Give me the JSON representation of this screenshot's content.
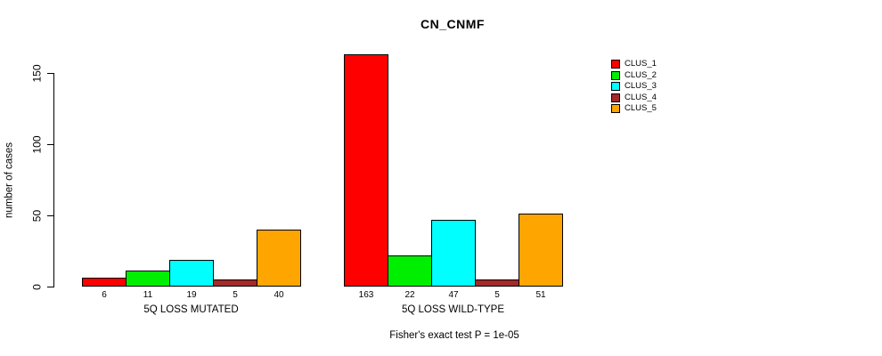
{
  "chart_data": {
    "type": "bar",
    "title": "CN_CNMF",
    "ylabel": "number of cases",
    "subtitle": "Fisher's exact test P = 1e-05",
    "yticks": [
      0,
      50,
      100,
      150
    ],
    "ylim": [
      0,
      163
    ],
    "grid": false,
    "legend_position": "right",
    "categories": [
      "5Q LOSS MUTATED",
      "5Q LOSS WILD-TYPE"
    ],
    "groups": [
      {
        "label": "5Q LOSS MUTATED",
        "values": [
          6,
          11,
          19,
          5,
          40
        ]
      },
      {
        "label": "5Q LOSS WILD-TYPE",
        "values": [
          163,
          22,
          47,
          5,
          51
        ]
      }
    ],
    "series": [
      {
        "name": "CLUS_1",
        "color": "#ff0000"
      },
      {
        "name": "CLUS_2",
        "color": "#00ee00"
      },
      {
        "name": "CLUS_3",
        "color": "#00ffff"
      },
      {
        "name": "CLUS_4",
        "color": "#a52a2a"
      },
      {
        "name": "CLUS_5",
        "color": "#ffa500"
      }
    ],
    "axis_color": "#000000",
    "bar_border_color": "#000000"
  }
}
